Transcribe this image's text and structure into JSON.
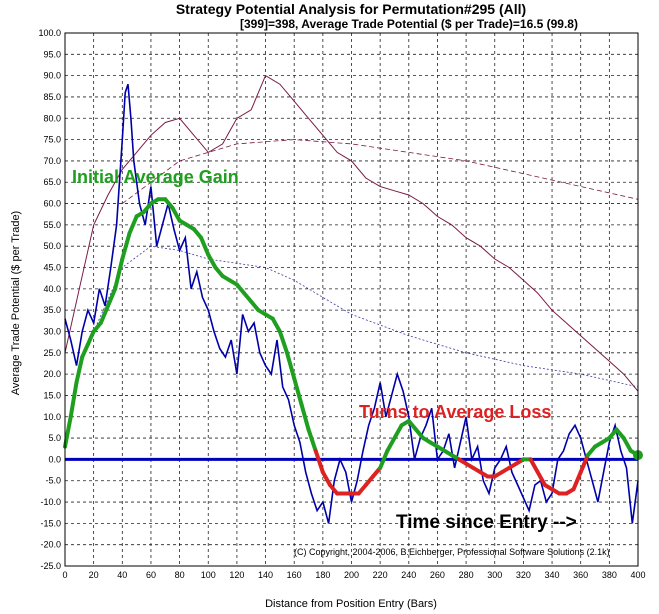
{
  "chart_data": {
    "type": "line",
    "title": "Strategy Potential Analysis for Permutation#295 (All)",
    "subtitle": "[399]=398,   Average Trade Potential ($ per Trade)=16.5 (99.8)",
    "xlabel": "Distance from Position Entry (Bars)",
    "ylabel": "Average Trade Potential ($ per Trade)",
    "xlim": [
      0,
      400
    ],
    "ylim": [
      -25,
      100
    ],
    "x_ticks": [
      0,
      20,
      40,
      60,
      80,
      100,
      120,
      140,
      160,
      180,
      200,
      220,
      240,
      260,
      280,
      300,
      320,
      340,
      360,
      380,
      400
    ],
    "y_ticks": [
      100,
      95,
      90,
      85,
      80,
      75,
      70,
      65,
      60,
      55,
      50,
      45,
      40,
      35,
      30,
      25,
      20,
      15,
      10,
      5,
      0,
      -5,
      -10,
      -15,
      -20,
      -25
    ],
    "grid": true,
    "annotations": {
      "initial_gain": "Initial Average Gain",
      "turns_loss": "Turns to Average Loss",
      "time_since": "Time since Entry -->",
      "copyright": "(C) Copyright, 2004-2006, B.Eichberger, Professional Software Solutions (2.1k)"
    },
    "series": [
      {
        "role": "raw_average",
        "color": "#0000aa",
        "x": [
          0,
          4,
          8,
          12,
          16,
          20,
          24,
          28,
          32,
          36,
          40,
          42,
          44,
          46,
          48,
          52,
          56,
          60,
          64,
          68,
          72,
          76,
          80,
          84,
          88,
          92,
          96,
          100,
          104,
          108,
          112,
          116,
          120,
          124,
          128,
          132,
          136,
          140,
          144,
          148,
          152,
          156,
          160,
          164,
          168,
          172,
          176,
          180,
          184,
          188,
          192,
          196,
          200,
          204,
          208,
          212,
          216,
          220,
          224,
          228,
          232,
          236,
          240,
          244,
          248,
          252,
          256,
          260,
          264,
          268,
          272,
          276,
          280,
          284,
          288,
          292,
          296,
          300,
          304,
          308,
          312,
          316,
          320,
          324,
          328,
          332,
          336,
          340,
          344,
          348,
          352,
          356,
          360,
          364,
          368,
          372,
          376,
          380,
          384,
          388,
          392,
          396,
          400
        ],
        "y": [
          33,
          28,
          22,
          30,
          35,
          32,
          40,
          36,
          45,
          55,
          75,
          86,
          88,
          80,
          70,
          60,
          55,
          64,
          50,
          55,
          60,
          54,
          49,
          52,
          40,
          44,
          38,
          35,
          30,
          26,
          24,
          28,
          20,
          34,
          30,
          32,
          25,
          22,
          20,
          28,
          17,
          14,
          8,
          4,
          -3,
          -8,
          -12,
          -10,
          -15,
          -5,
          0,
          -3,
          -10,
          -5,
          2,
          8,
          12,
          18,
          10,
          15,
          20,
          16,
          10,
          0,
          5,
          8,
          12,
          0,
          2,
          6,
          -2,
          4,
          10,
          0,
          3,
          -5,
          -8,
          -2,
          0,
          3,
          -3,
          -6,
          -9,
          -12,
          -6,
          -5,
          -10,
          -8,
          0,
          2,
          6,
          8,
          5,
          0,
          -5,
          -10,
          -3,
          4,
          8,
          2,
          -2,
          -15,
          -5
        ]
      },
      {
        "role": "upper_envelope",
        "color": "#7a1a45",
        "x": [
          0,
          10,
          20,
          30,
          40,
          50,
          60,
          70,
          80,
          90,
          100,
          110,
          120,
          130,
          140,
          150,
          160,
          170,
          180,
          190,
          200,
          210,
          220,
          230,
          240,
          250,
          260,
          270,
          280,
          290,
          300,
          310,
          320,
          330,
          340,
          350,
          360,
          370,
          380,
          390,
          400
        ],
        "y": [
          25,
          40,
          55,
          62,
          68,
          72,
          76,
          79,
          80,
          76,
          72,
          74,
          80,
          82,
          90,
          88,
          84,
          80,
          76,
          72,
          70,
          66,
          64,
          63,
          62,
          60,
          57,
          55,
          52,
          50,
          47,
          45,
          42,
          39,
          35,
          32,
          29,
          26,
          23,
          20,
          16
        ]
      },
      {
        "role": "smoothed_average",
        "color": "#1f9f1f",
        "x": [
          0,
          4,
          8,
          12,
          16,
          20,
          25,
          30,
          35,
          40,
          45,
          50,
          55,
          60,
          65,
          70,
          75,
          80,
          85,
          90,
          95,
          100,
          105,
          110,
          115,
          120,
          125,
          130,
          135,
          140,
          145,
          150,
          155,
          160,
          165,
          170,
          175,
          180,
          185,
          190,
          195,
          200,
          205,
          210,
          215,
          220,
          225,
          230,
          235,
          240,
          245,
          250,
          255,
          260,
          265,
          270,
          275,
          280,
          285,
          290,
          295,
          300,
          305,
          310,
          315,
          320,
          325,
          330,
          335,
          340,
          345,
          350,
          355,
          360,
          365,
          370,
          375,
          380,
          385,
          390,
          395,
          400
        ],
        "y": [
          3,
          10,
          18,
          24,
          27,
          30,
          32,
          36,
          40,
          47,
          53,
          57,
          58,
          60,
          61,
          61,
          59,
          56,
          55,
          54,
          52,
          48,
          45,
          43,
          42,
          41,
          39,
          37,
          35,
          34,
          33,
          30,
          25,
          19,
          13,
          7,
          2,
          -3,
          -6,
          -8,
          -8,
          -8,
          -8,
          -6,
          -4,
          -2,
          2,
          5,
          8,
          9,
          7,
          5,
          4,
          3,
          2,
          1,
          0,
          -1,
          -2,
          -3,
          -4,
          -4,
          -3,
          -2,
          -1,
          0,
          0,
          -3,
          -6,
          -7,
          -8,
          -8,
          -7,
          -3,
          1,
          3,
          4,
          5,
          7,
          5,
          2,
          1
        ]
      }
    ]
  }
}
